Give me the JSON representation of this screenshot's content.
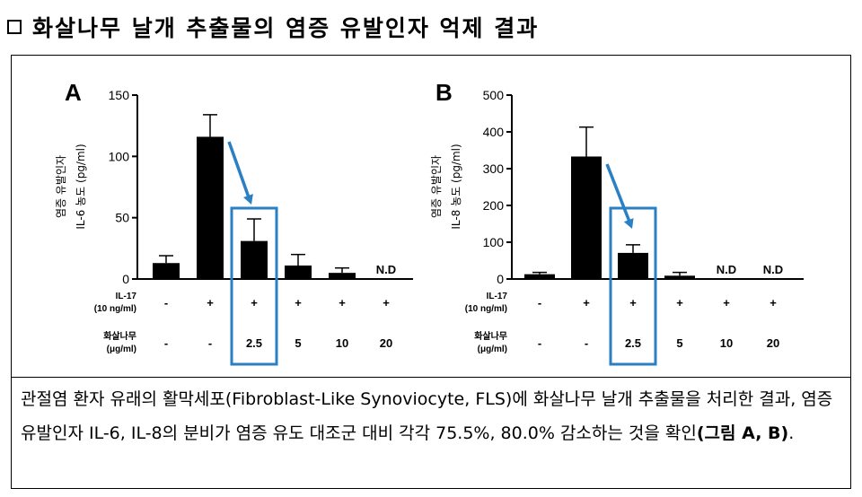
{
  "heading": {
    "icon": "empty-square-bullet",
    "text": "화살나무 날개 추출물의 염증 유발인자 억제 결과"
  },
  "caption": {
    "text": "관절염 환자 유래의 활막세포(Fibroblast-Like Synoviocyte, FLS)에 화살나무 날개 추출물을 처리한 결과, 염증 유발인자 IL-6, IL-8의 분비가 염증 유도 대조군 대비 각각 75.5%, 80.0% 감소하는 것을 확인",
    "bold_ref": "(그림 A, B)",
    "end": "."
  },
  "colors": {
    "bar": "#000000",
    "highlight": "#2b7fc3",
    "arrow": "#2b7fc3"
  },
  "chart_data": [
    {
      "type": "bar",
      "panel": "A",
      "ylabel_line1": "염증 유발인자",
      "ylabel_line2": "IL-6 농도 (pg/ml)",
      "ylim": [
        0,
        150
      ],
      "yticks": [
        0,
        50,
        100,
        150
      ],
      "values": [
        13,
        116,
        31,
        11,
        5,
        0
      ],
      "errors": [
        6,
        18,
        18,
        9,
        4,
        0
      ],
      "nd": [
        false,
        false,
        false,
        false,
        false,
        true
      ],
      "nd_label": "N.D",
      "highlight_index": 2,
      "row1_label_1": "IL-17",
      "row1_label_2": "(10 ng/ml)",
      "row1_values": [
        "-",
        "+",
        "+",
        "+",
        "+",
        "+"
      ],
      "row2_label_1": "화살나무",
      "row2_label_2": "(μg/ml)",
      "row2_values": [
        "-",
        "-",
        "2.5",
        "5",
        "10",
        "20"
      ]
    },
    {
      "type": "bar",
      "panel": "B",
      "ylabel_line1": "염증 유발인자",
      "ylabel_line2": "IL-8 농도 (pg/ml)",
      "ylim": [
        0,
        500
      ],
      "yticks": [
        0,
        100,
        200,
        300,
        400,
        500
      ],
      "values": [
        13,
        333,
        71,
        9,
        0,
        0
      ],
      "errors": [
        5,
        80,
        22,
        9,
        0,
        0
      ],
      "nd": [
        false,
        false,
        false,
        false,
        true,
        true
      ],
      "nd_label": "N.D",
      "highlight_index": 2,
      "row1_label_1": "IL-17",
      "row1_label_2": "(10 ng/ml)",
      "row1_values": [
        "-",
        "+",
        "+",
        "+",
        "+",
        "+"
      ],
      "row2_label_1": "화살나무",
      "row2_label_2": "(μg/ml)",
      "row2_values": [
        "-",
        "-",
        "2.5",
        "5",
        "10",
        "20"
      ]
    }
  ]
}
